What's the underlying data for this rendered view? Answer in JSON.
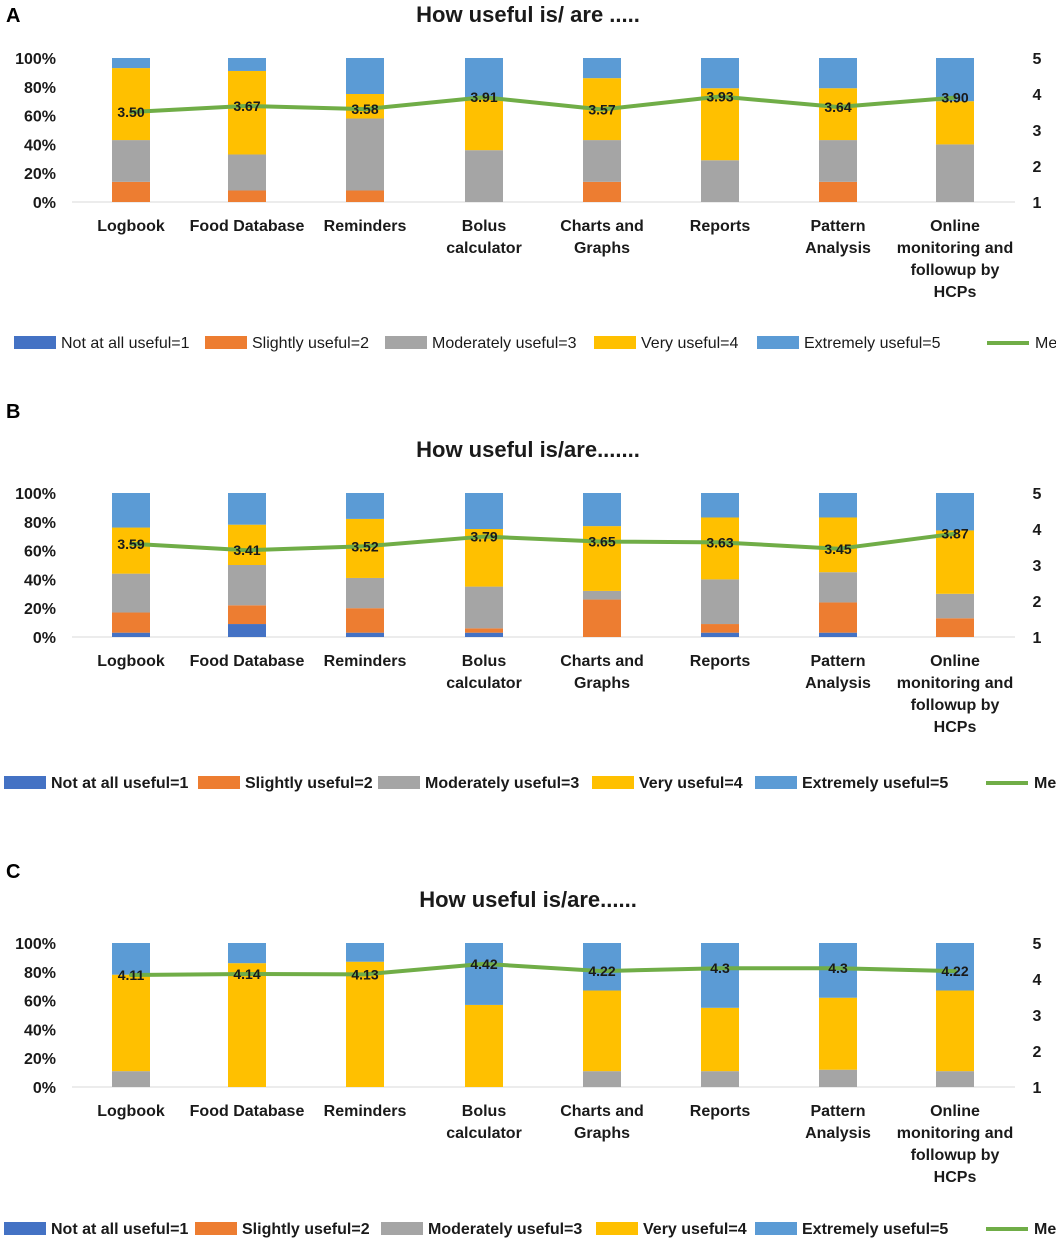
{
  "colors": {
    "Not at all useful=1": "#4472C4",
    "Slightly useful=2": "#ED7D31",
    "Moderately useful=3": "#A5A5A5",
    "Very useful=4": "#FFC000",
    "Extremely useful=5": "#5B9BD5",
    "Mean": "#70AD47"
  },
  "chart_data": [
    {
      "panel": "A",
      "type": "bar",
      "stacked": true,
      "title": "How useful is/ are .....",
      "categories": [
        "Logbook",
        "Food Database",
        "Reminders",
        "Bolus calculator",
        "Charts and Graphs",
        "Reports",
        "Pattern Analysis",
        "Online monitoring and followup by HCPs"
      ],
      "category_lines": [
        [
          "Logbook"
        ],
        [
          "Food Database"
        ],
        [
          "Reminders"
        ],
        [
          "Bolus",
          "calculator"
        ],
        [
          "Charts and",
          "Graphs"
        ],
        [
          "Reports"
        ],
        [
          "Pattern",
          "Analysis"
        ],
        [
          "Online",
          "monitoring and",
          "followup by",
          "HCPs"
        ]
      ],
      "y_ticks": [
        "0%",
        "20%",
        "40%",
        "60%",
        "80%",
        "100%"
      ],
      "y2_ticks": [
        "1",
        "2",
        "3",
        "4",
        "5"
      ],
      "ylim": [
        0,
        100
      ],
      "y2lim": [
        1,
        5
      ],
      "series": [
        {
          "name": "Not at all useful=1",
          "values": [
            0,
            0,
            0,
            0,
            0,
            0,
            0,
            0
          ]
        },
        {
          "name": "Slightly useful=2",
          "values": [
            14,
            8,
            8,
            0,
            14,
            0,
            14,
            0
          ]
        },
        {
          "name": "Moderately useful=3",
          "values": [
            29,
            25,
            50,
            36,
            29,
            29,
            29,
            40
          ]
        },
        {
          "name": "Very useful=4",
          "values": [
            50,
            58,
            17,
            36,
            43,
            50,
            36,
            30
          ]
        },
        {
          "name": "Extremely useful=5",
          "values": [
            7,
            9,
            25,
            28,
            14,
            21,
            21,
            30
          ]
        }
      ],
      "mean": {
        "name": "Mean",
        "values": [
          3.5,
          3.67,
          3.58,
          3.91,
          3.57,
          3.93,
          3.64,
          3.9
        ],
        "labels": [
          "3.50",
          "3.67",
          "3.58",
          "3.91",
          "3.57",
          "3.93",
          "3.64",
          "3.90"
        ]
      },
      "legend": [
        "Not at all useful=1",
        "Slightly useful=2",
        "Moderately useful=3",
        "Very useful=4",
        "Extremely useful=5",
        "Mean"
      ],
      "legend_position": "bottom"
    },
    {
      "panel": "B",
      "type": "bar",
      "stacked": true,
      "title": "How useful is/are.......",
      "categories": [
        "Logbook",
        "Food Database",
        "Reminders",
        "Bolus calculator",
        "Charts and Graphs",
        "Reports",
        "Pattern Analysis",
        "Online monitoring and followup by HCPs"
      ],
      "category_lines": [
        [
          "Logbook"
        ],
        [
          "Food Database"
        ],
        [
          "Reminders"
        ],
        [
          "Bolus",
          "calculator"
        ],
        [
          "Charts and",
          "Graphs"
        ],
        [
          "Reports"
        ],
        [
          "Pattern",
          "Analysis"
        ],
        [
          "Online",
          "monitoring and",
          "followup by",
          "HCPs"
        ]
      ],
      "y_ticks": [
        "0%",
        "20%",
        "40%",
        "60%",
        "80%",
        "100%"
      ],
      "y2_ticks": [
        "1",
        "2",
        "3",
        "4",
        "5"
      ],
      "ylim": [
        0,
        100
      ],
      "y2lim": [
        1,
        5
      ],
      "series": [
        {
          "name": "Not at all useful=1",
          "values": [
            3,
            9,
            3,
            3,
            0,
            3,
            3,
            0
          ]
        },
        {
          "name": "Slightly useful=2",
          "values": [
            14,
            13,
            17,
            3,
            26,
            6,
            21,
            13
          ]
        },
        {
          "name": "Moderately useful=3",
          "values": [
            27,
            28,
            21,
            29,
            6,
            31,
            21,
            17
          ]
        },
        {
          "name": "Very useful=4",
          "values": [
            32,
            28,
            41,
            40,
            45,
            43,
            38,
            44
          ]
        },
        {
          "name": "Extremely useful=5",
          "values": [
            24,
            22,
            18,
            25,
            23,
            17,
            17,
            26
          ]
        }
      ],
      "mean": {
        "name": "Mean",
        "values": [
          3.59,
          3.41,
          3.52,
          3.79,
          3.65,
          3.63,
          3.45,
          3.87
        ],
        "labels": [
          "3.59",
          "3.41",
          "3.52",
          "3.79",
          "3.65",
          "3.63",
          "3.45",
          "3.87"
        ]
      },
      "legend": [
        "Not at all useful=1",
        "Slightly useful=2",
        "Moderately useful=3",
        "Very useful=4",
        "Extremely useful=5",
        "Mean"
      ],
      "legend_position": "bottom"
    },
    {
      "panel": "C",
      "type": "bar",
      "stacked": true,
      "title": "How useful is/are......",
      "categories": [
        "Logbook",
        "Food Database",
        "Reminders",
        "Bolus calculator",
        "Charts and Graphs",
        "Reports",
        "Pattern Analysis",
        "Online monitoring and followup by HCPs"
      ],
      "category_lines": [
        [
          "Logbook"
        ],
        [
          "Food Database"
        ],
        [
          "Reminders"
        ],
        [
          "Bolus",
          "calculator"
        ],
        [
          "Charts and",
          "Graphs"
        ],
        [
          "Reports"
        ],
        [
          "Pattern",
          "Analysis"
        ],
        [
          "Online",
          "monitoring and",
          "followup by",
          "HCPs"
        ]
      ],
      "y_ticks": [
        "0%",
        "20%",
        "40%",
        "60%",
        "80%",
        "100%"
      ],
      "y2_ticks": [
        "1",
        "2",
        "3",
        "4",
        "5"
      ],
      "ylim": [
        0,
        100
      ],
      "y2lim": [
        1,
        5
      ],
      "series": [
        {
          "name": "Not at all useful=1",
          "values": [
            0,
            0,
            0,
            0,
            0,
            0,
            0,
            0
          ]
        },
        {
          "name": "Slightly useful=2",
          "values": [
            0,
            0,
            0,
            0,
            0,
            0,
            0,
            0
          ]
        },
        {
          "name": "Moderately useful=3",
          "values": [
            11,
            0,
            0,
            0,
            11,
            11,
            12,
            11
          ]
        },
        {
          "name": "Very useful=4",
          "values": [
            67,
            86,
            87,
            57,
            56,
            44,
            50,
            56
          ]
        },
        {
          "name": "Extremely useful=5",
          "values": [
            22,
            14,
            13,
            43,
            33,
            45,
            38,
            33
          ]
        }
      ],
      "mean": {
        "name": "Mean",
        "values": [
          4.11,
          4.14,
          4.13,
          4.42,
          4.22,
          4.3,
          4.3,
          4.22
        ],
        "labels": [
          "4.11",
          "4.14",
          "4.13",
          "4.42",
          "4.22",
          "4.3",
          "4.3",
          "4.22"
        ]
      },
      "legend": [
        "Not at all useful=1",
        "Slightly useful=2",
        "Moderately useful=3",
        "Very useful=4",
        "Extremely useful=5",
        "Mean"
      ],
      "legend_position": "bottom"
    }
  ]
}
